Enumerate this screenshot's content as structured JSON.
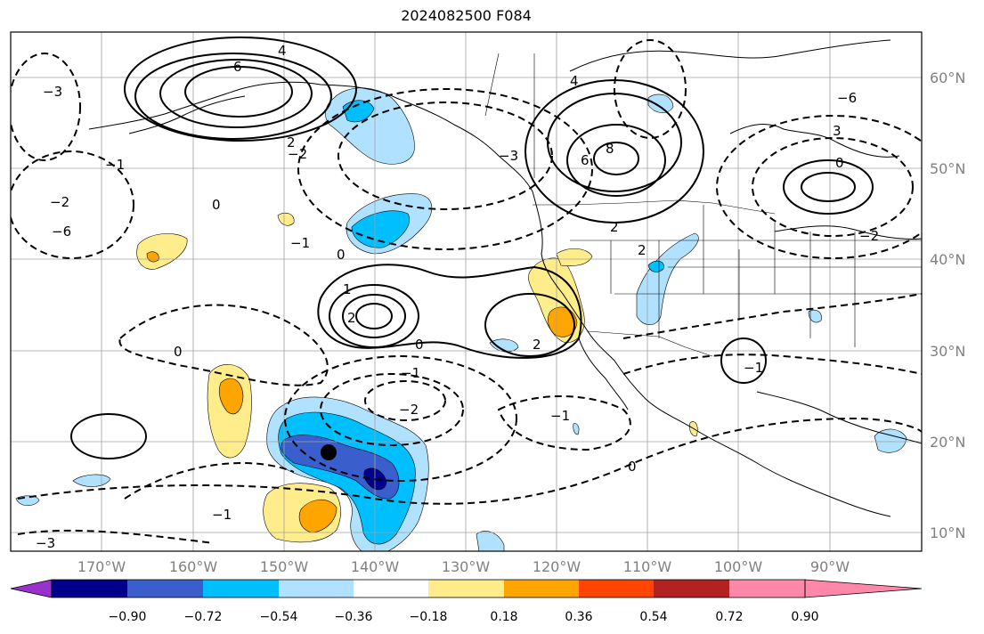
{
  "title": "2024082500 F084",
  "lat_labels": [
    "60°N",
    "50°N",
    "40°N",
    "30°N",
    "20°N",
    "10°N"
  ],
  "lon_labels": [
    "170°W",
    "160°W",
    "150°W",
    "140°W",
    "130°W",
    "120°W",
    "110°W",
    "100°W",
    "90°W"
  ],
  "colorbar": {
    "colors": [
      "#9932cc",
      "#00008b",
      "#3a5fcd",
      "#00bfff",
      "#b0e2ff",
      "#ffffff",
      "#ffec8b",
      "#ffa500",
      "#ff4500",
      "#b22222",
      "#ff88aa"
    ],
    "tick_labels": [
      "−0.90",
      "−0.72",
      "−0.54",
      "−0.36",
      "−0.18",
      "0.18",
      "0.36",
      "0.54",
      "0.72",
      "0.90"
    ]
  },
  "contour_labels": [
    "6",
    "4",
    "2",
    "0",
    "−1",
    "−2",
    "−3",
    "−6",
    "8",
    "6",
    "4",
    "2",
    "1",
    "2",
    "0",
    "−1",
    "−2",
    "−1",
    "0",
    "2",
    "−1",
    "2",
    "3",
    "0",
    "−2",
    "−3",
    "0",
    "0",
    "−1",
    "−2",
    "−6",
    "−3",
    "−1"
  ],
  "marker": {
    "label": "storm-center"
  }
}
